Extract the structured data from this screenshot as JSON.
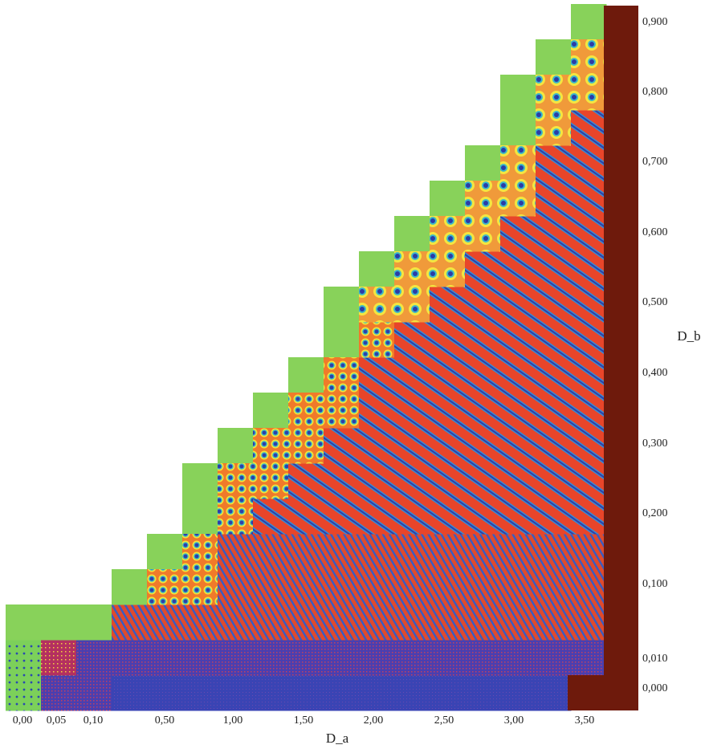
{
  "x_axis": {
    "label": "D_a",
    "ticks": [
      "0,00",
      "0,05",
      "0,10",
      "0,50",
      "1,00",
      "1,50",
      "2,00",
      "2,50",
      "3,00",
      "3,50"
    ]
  },
  "y_axis": {
    "label": "D_b",
    "ticks": [
      "0,900",
      "0,800",
      "0,700",
      "0,600",
      "0,500",
      "0,400",
      "0,300",
      "0,200",
      "0,100",
      "0,010",
      "0,000"
    ]
  }
}
